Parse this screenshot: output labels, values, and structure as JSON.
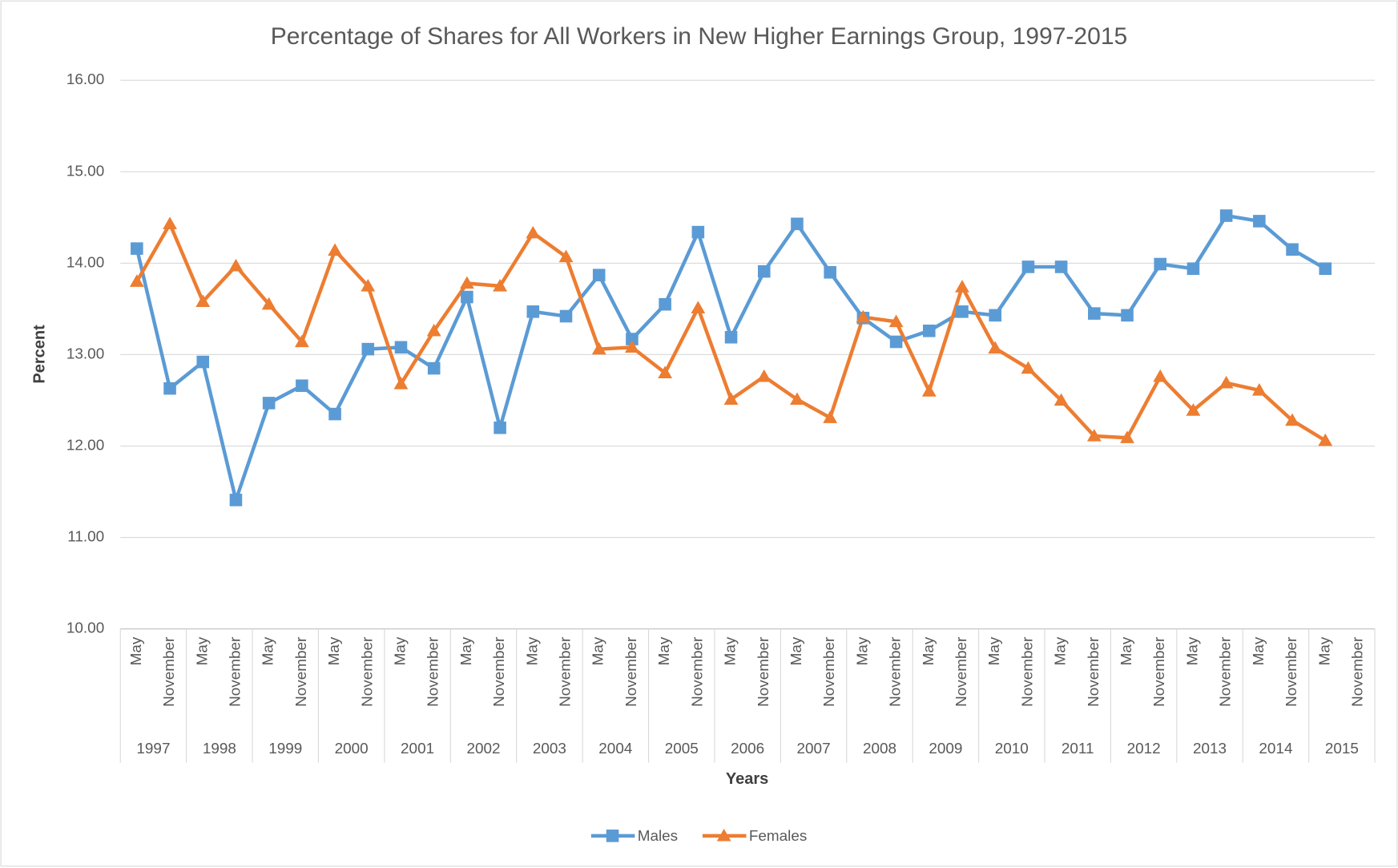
{
  "chart_data": {
    "type": "line",
    "title": "Percentage of Shares for All Workers in New Higher Earnings Group, 1997-2015",
    "y_label": "Percent",
    "x_label": "Years",
    "categories": [
      "May",
      "November",
      "May",
      "November",
      "May",
      "November",
      "May",
      "November",
      "May",
      "November",
      "May",
      "November",
      "May",
      "November",
      "May",
      "November",
      "May",
      "November",
      "May",
      "November",
      "May",
      "November",
      "May",
      "November",
      "May",
      "November",
      "May",
      "November",
      "May",
      "November",
      "May",
      "November",
      "May",
      "November",
      "May",
      "November",
      "May",
      "November"
    ],
    "years": [
      "1997",
      "1998",
      "1999",
      "2000",
      "2001",
      "2002",
      "2003",
      "2004",
      "2005",
      "2006",
      "2007",
      "2008",
      "2009",
      "2010",
      "2011",
      "2012",
      "2013",
      "2014",
      "2015"
    ],
    "series": [
      {
        "name": "Males",
        "color": "#5b9bd5",
        "marker": "square",
        "values": [
          14.16,
          12.63,
          12.92,
          11.41,
          12.47,
          12.66,
          12.35,
          13.06,
          13.08,
          12.85,
          13.63,
          12.2,
          13.47,
          13.42,
          13.87,
          13.17,
          13.55,
          14.34,
          13.19,
          13.91,
          14.43,
          13.9,
          13.4,
          13.14,
          13.26,
          13.47,
          13.43,
          13.96,
          13.96,
          13.45,
          13.43,
          13.99,
          13.94,
          14.52,
          14.46,
          14.15,
          13.94,
          null
        ]
      },
      {
        "name": "Females",
        "color": "#ed7d31",
        "marker": "triangle",
        "values": [
          13.8,
          14.43,
          13.58,
          13.97,
          13.55,
          13.14,
          14.14,
          13.75,
          12.68,
          13.26,
          13.78,
          13.75,
          14.33,
          14.07,
          13.06,
          13.08,
          12.8,
          13.51,
          12.51,
          12.76,
          12.51,
          12.31,
          13.41,
          13.36,
          12.6,
          13.74,
          13.07,
          12.85,
          12.5,
          12.11,
          12.09,
          12.76,
          12.39,
          12.69,
          12.61,
          12.28,
          12.06,
          null
        ]
      }
    ],
    "ylim": [
      10,
      16
    ],
    "yticks": [
      {
        "value": 10,
        "label": "10.00"
      },
      {
        "value": 11,
        "label": "11.00"
      },
      {
        "value": 12,
        "label": "12.00"
      },
      {
        "value": 13,
        "label": "13.00"
      },
      {
        "value": 14,
        "label": "14.00"
      },
      {
        "value": 15,
        "label": "15.00"
      },
      {
        "value": 16,
        "label": "16.00"
      }
    ],
    "grid": true,
    "legend": "bottom"
  }
}
